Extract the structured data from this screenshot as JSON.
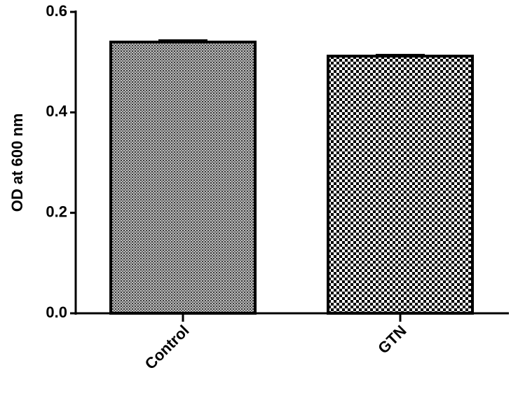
{
  "chart_data": {
    "type": "bar",
    "y_label": "OD at 600 nm",
    "categories": [
      "Control",
      "GTN"
    ],
    "values": [
      0.54,
      0.512
    ],
    "errors": [
      0.004,
      0.003
    ],
    "ylim": [
      0,
      0.6
    ],
    "yticks": [
      {
        "value": 0,
        "label": "0.0"
      },
      0.2,
      0.4,
      0.6
    ],
    "color": "#000000"
  }
}
